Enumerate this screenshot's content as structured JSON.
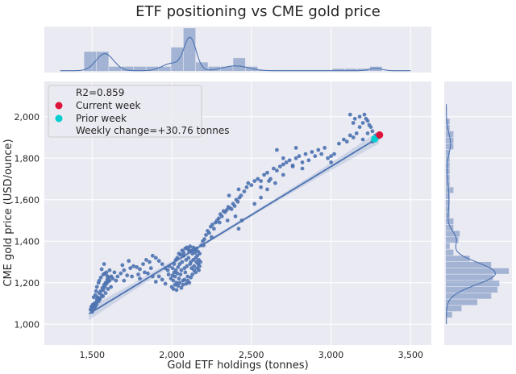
{
  "chart_data": {
    "type": "scatter",
    "title": "ETF positioning vs CME gold price",
    "xlabel": "Gold ETF holdings (tonnes)",
    "ylabel": "CME gold price (USD/ounce)",
    "xlim": [
      1200,
      3630
    ],
    "ylim": [
      900,
      2170
    ],
    "x_ticks": [
      1500,
      2000,
      2500,
      3000,
      3500
    ],
    "y_ticks": [
      1000,
      1200,
      1400,
      1600,
      1800,
      2000
    ],
    "x_tick_labels": [
      "1,500",
      "2,000",
      "2,500",
      "3,000",
      "3,500"
    ],
    "y_tick_labels": [
      "1,000",
      "1,200",
      "1,400",
      "1,600",
      "1,800",
      "2,000"
    ],
    "grid": true,
    "legend_placement": "top-left",
    "legend": {
      "r2_text": "R2=0.859",
      "current_label": "Current week",
      "prior_label": "Prior week",
      "change_text": "Weekly change=+30.76 tonnes"
    },
    "colors": {
      "points": "#4c72b0",
      "current": "#dc143c",
      "prior": "#00ced1",
      "background": "#eaeaf2"
    },
    "regression": {
      "x": [
        1480,
        3300
      ],
      "y": [
        1050,
        1900
      ]
    },
    "current_week": {
      "x": 3305,
      "y": 1912
    },
    "prior_week": {
      "x": 3274,
      "y": 1893
    },
    "x_hist": {
      "bin_edges": [
        1450,
        1528,
        1606,
        1684,
        1762,
        1840,
        1918,
        1996,
        2074,
        2152,
        2230,
        2308,
        2386,
        2464,
        2542,
        2620,
        2698,
        2776,
        2854,
        2932,
        3010,
        3088,
        3166,
        3244,
        3322
      ],
      "heights": [
        0.45,
        0.45,
        0.1,
        0.1,
        0.1,
        0.1,
        0.1,
        0.55,
        1.0,
        0.2,
        0.1,
        0.1,
        0.3,
        0.1,
        0.02,
        0.02,
        0.02,
        0.02,
        0.02,
        0.02,
        0.05,
        0.05,
        0.05,
        0.1
      ]
    },
    "y_hist": {
      "bin_edges": [
        1030,
        1060,
        1090,
        1120,
        1150,
        1180,
        1210,
        1240,
        1270,
        1300,
        1330,
        1360,
        1390,
        1420,
        1450,
        1480,
        1510,
        1540,
        1570,
        1600,
        1630,
        1660,
        1690,
        1720,
        1750,
        1780,
        1810,
        1840,
        1870,
        1900,
        1930,
        1960,
        1990
      ],
      "heights": [
        0.1,
        0.25,
        0.5,
        0.72,
        0.82,
        0.85,
        0.75,
        1.0,
        0.72,
        0.38,
        0.12,
        0.06,
        0.2,
        0.22,
        0.12,
        0.12,
        0.06,
        0.06,
        0.06,
        0.06,
        0.12,
        0.06,
        0.06,
        0.06,
        0.06,
        0.06,
        0.06,
        0.12,
        0.12,
        0.12,
        0.06,
        0.06
      ]
    },
    "points": [
      [
        1490,
        1070
      ],
      [
        1495,
        1085
      ],
      [
        1500,
        1080
      ],
      [
        1505,
        1095
      ],
      [
        1510,
        1090
      ],
      [
        1515,
        1100
      ],
      [
        1520,
        1085
      ],
      [
        1525,
        1105
      ],
      [
        1530,
        1120
      ],
      [
        1535,
        1130
      ],
      [
        1540,
        1110
      ],
      [
        1545,
        1150
      ],
      [
        1550,
        1125
      ],
      [
        1555,
        1160
      ],
      [
        1560,
        1140
      ],
      [
        1565,
        1175
      ],
      [
        1570,
        1165
      ],
      [
        1575,
        1190
      ],
      [
        1580,
        1180
      ],
      [
        1585,
        1200
      ],
      [
        1590,
        1195
      ],
      [
        1595,
        1215
      ],
      [
        1600,
        1205
      ],
      [
        1605,
        1225
      ],
      [
        1610,
        1210
      ],
      [
        1620,
        1230
      ],
      [
        1630,
        1220
      ],
      [
        1640,
        1250
      ],
      [
        1520,
        1140
      ],
      [
        1530,
        1180
      ],
      [
        1545,
        1210
      ],
      [
        1560,
        1265
      ],
      [
        1575,
        1290
      ],
      [
        1590,
        1250
      ],
      [
        1610,
        1260
      ],
      [
        1500,
        1060
      ],
      [
        1512,
        1075
      ],
      [
        1528,
        1095
      ],
      [
        1548,
        1120
      ],
      [
        1568,
        1135
      ],
      [
        1585,
        1150
      ],
      [
        1600,
        1170
      ],
      [
        1618,
        1180
      ],
      [
        1540,
        1200
      ],
      [
        1555,
        1225
      ],
      [
        1570,
        1240
      ],
      [
        1580,
        1245
      ],
      [
        1595,
        1232
      ],
      [
        1510,
        1130
      ],
      [
        1525,
        1160
      ],
      [
        1650,
        1210
      ],
      [
        1660,
        1230
      ],
      [
        1680,
        1245
      ],
      [
        1700,
        1260
      ],
      [
        1720,
        1235
      ],
      [
        1740,
        1270
      ],
      [
        1760,
        1280
      ],
      [
        1780,
        1275
      ],
      [
        1800,
        1265
      ],
      [
        1820,
        1290
      ],
      [
        1840,
        1310
      ],
      [
        1860,
        1300
      ],
      [
        1880,
        1330
      ],
      [
        1900,
        1320
      ],
      [
        1920,
        1305
      ],
      [
        1940,
        1290
      ],
      [
        1960,
        1270
      ],
      [
        1980,
        1240
      ],
      [
        1700,
        1210
      ],
      [
        1750,
        1230
      ],
      [
        1800,
        1220
      ],
      [
        1850,
        1245
      ],
      [
        1880,
        1230
      ],
      [
        1900,
        1205
      ],
      [
        1920,
        1230
      ],
      [
        1940,
        1215
      ],
      [
        1960,
        1195
      ],
      [
        1690,
        1285
      ],
      [
        1730,
        1305
      ],
      [
        1790,
        1240
      ],
      [
        1830,
        1250
      ],
      [
        1870,
        1270
      ],
      [
        1975,
        1260
      ],
      [
        1985,
        1280
      ],
      [
        1995,
        1220
      ],
      [
        2005,
        1235
      ],
      [
        2010,
        1210
      ],
      [
        2015,
        1250
      ],
      [
        2020,
        1230
      ],
      [
        2025,
        1260
      ],
      [
        2030,
        1200
      ],
      [
        2035,
        1245
      ],
      [
        2040,
        1275
      ],
      [
        2045,
        1220
      ],
      [
        2050,
        1290
      ],
      [
        2055,
        1240
      ],
      [
        2060,
        1260
      ],
      [
        2065,
        1300
      ],
      [
        2070,
        1210
      ],
      [
        2075,
        1330
      ],
      [
        2080,
        1270
      ],
      [
        2085,
        1250
      ],
      [
        2090,
        1310
      ],
      [
        2095,
        1280
      ],
      [
        2100,
        1230
      ],
      [
        2105,
        1320
      ],
      [
        2110,
        1350
      ],
      [
        2115,
        1290
      ],
      [
        2120,
        1300
      ],
      [
        2125,
        1270
      ],
      [
        2130,
        1340
      ],
      [
        2135,
        1310
      ],
      [
        2140,
        1280
      ],
      [
        2145,
        1360
      ],
      [
        2150,
        1320
      ],
      [
        2155,
        1300
      ],
      [
        2160,
        1330
      ],
      [
        2165,
        1290
      ],
      [
        2170,
        1310
      ],
      [
        2175,
        1280
      ],
      [
        2180,
        1300
      ],
      [
        2000,
        1180
      ],
      [
        2010,
        1170
      ],
      [
        2020,
        1190
      ],
      [
        2030,
        1165
      ],
      [
        2040,
        1185
      ],
      [
        2050,
        1200
      ],
      [
        2060,
        1175
      ],
      [
        2070,
        1190
      ],
      [
        2080,
        1215
      ],
      [
        2090,
        1195
      ],
      [
        2100,
        1210
      ],
      [
        2110,
        1200
      ],
      [
        2120,
        1225
      ],
      [
        2130,
        1240
      ],
      [
        2140,
        1260
      ],
      [
        2150,
        1250
      ],
      [
        2160,
        1270
      ],
      [
        2170,
        1260
      ],
      [
        2005,
        1270
      ],
      [
        2015,
        1290
      ],
      [
        2025,
        1310
      ],
      [
        2035,
        1320
      ],
      [
        2045,
        1340
      ],
      [
        2055,
        1335
      ],
      [
        2065,
        1355
      ],
      [
        2075,
        1345
      ],
      [
        2085,
        1365
      ],
      [
        2095,
        1370
      ],
      [
        2105,
        1360
      ],
      [
        2115,
        1375
      ],
      [
        2125,
        1355
      ],
      [
        2135,
        1370
      ],
      [
        2145,
        1345
      ],
      [
        2155,
        1365
      ],
      [
        2165,
        1350
      ],
      [
        2175,
        1340
      ],
      [
        2185,
        1380
      ],
      [
        2195,
        1400
      ],
      [
        2205,
        1410
      ],
      [
        2215,
        1430
      ],
      [
        2225,
        1450
      ],
      [
        2235,
        1440
      ],
      [
        2245,
        1470
      ],
      [
        2255,
        1480
      ],
      [
        2265,
        1460
      ],
      [
        2275,
        1490
      ],
      [
        2285,
        1500
      ],
      [
        2295,
        1510
      ],
      [
        2305,
        1530
      ],
      [
        2315,
        1520
      ],
      [
        2325,
        1545
      ],
      [
        2335,
        1540
      ],
      [
        2345,
        1550
      ],
      [
        2355,
        1565
      ],
      [
        2365,
        1560
      ],
      [
        2375,
        1555
      ],
      [
        2385,
        1580
      ],
      [
        2395,
        1570
      ],
      [
        2405,
        1600
      ],
      [
        2415,
        1590
      ],
      [
        2425,
        1610
      ],
      [
        2435,
        1620
      ],
      [
        2300,
        1490
      ],
      [
        2350,
        1500
      ],
      [
        2400,
        1520
      ],
      [
        2420,
        1460
      ],
      [
        2440,
        1500
      ],
      [
        2200,
        1380
      ],
      [
        2250,
        1420
      ],
      [
        2360,
        1620
      ],
      [
        2420,
        1650
      ],
      [
        2455,
        1640
      ],
      [
        2470,
        1660
      ],
      [
        2480,
        1680
      ],
      [
        2500,
        1670
      ],
      [
        2520,
        1690
      ],
      [
        2540,
        1700
      ],
      [
        2560,
        1690
      ],
      [
        2580,
        1720
      ],
      [
        2600,
        1730
      ],
      [
        2620,
        1700
      ],
      [
        2640,
        1750
      ],
      [
        2660,
        1740
      ],
      [
        2680,
        1760
      ],
      [
        2700,
        1770
      ],
      [
        2720,
        1780
      ],
      [
        2740,
        1790
      ],
      [
        2760,
        1765
      ],
      [
        2780,
        1800
      ],
      [
        2800,
        1810
      ],
      [
        2820,
        1780
      ],
      [
        2840,
        1820
      ],
      [
        2860,
        1790
      ],
      [
        2880,
        1830
      ],
      [
        2900,
        1810
      ],
      [
        2920,
        1840
      ],
      [
        2940,
        1820
      ],
      [
        2960,
        1850
      ],
      [
        2980,
        1800
      ],
      [
        3000,
        1810
      ],
      [
        2560,
        1610
      ],
      [
        2600,
        1650
      ],
      [
        2650,
        1680
      ],
      [
        2520,
        1580
      ],
      [
        2560,
        1660
      ],
      [
        2610,
        1690
      ],
      [
        2700,
        1720
      ],
      [
        2760,
        1760
      ],
      [
        2820,
        1750
      ],
      [
        2660,
        1840
      ],
      [
        2700,
        1800
      ],
      [
        2780,
        1850
      ],
      [
        3000,
        1780
      ],
      [
        3020,
        1820
      ],
      [
        3050,
        1870
      ],
      [
        3080,
        1890
      ],
      [
        3100,
        1880
      ],
      [
        3120,
        1910
      ],
      [
        3140,
        1900
      ],
      [
        3160,
        1920
      ],
      [
        3180,
        1950
      ],
      [
        3200,
        1970
      ],
      [
        3220,
        1990
      ],
      [
        3240,
        1960
      ],
      [
        3250,
        1950
      ],
      [
        3260,
        1930
      ],
      [
        3150,
        1990
      ],
      [
        3180,
        2000
      ],
      [
        3210,
        2010
      ],
      [
        3230,
        1980
      ],
      [
        3120,
        2010
      ],
      [
        3140,
        1970
      ],
      [
        3280,
        1910
      ],
      [
        3300,
        1900
      ],
      [
        3200,
        1890
      ],
      [
        3230,
        1920
      ],
      [
        3260,
        1880
      ]
    ]
  }
}
